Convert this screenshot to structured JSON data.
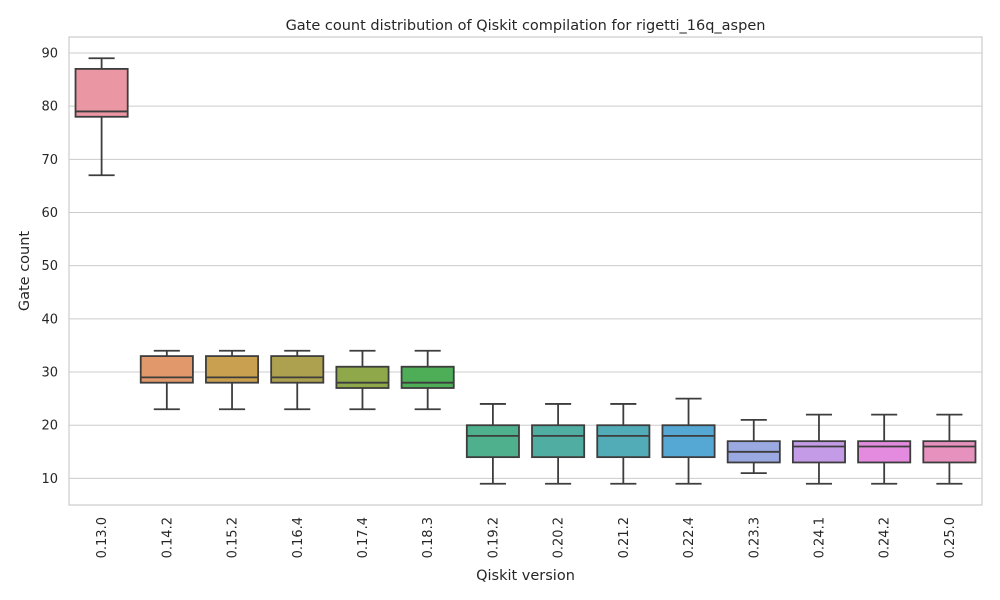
{
  "chart_data": {
    "type": "box",
    "title": "Gate count distribution of Qiskit compilation for rigetti_16q_aspen",
    "xlabel": "Qiskit version",
    "ylabel": "Gate count",
    "ylim": [
      5,
      93
    ],
    "yticks": [
      10,
      20,
      30,
      40,
      50,
      60,
      70,
      80,
      90
    ],
    "grid": "horizontal",
    "categories": [
      "0.13.0",
      "0.14.2",
      "0.15.2",
      "0.16.4",
      "0.17.4",
      "0.18.3",
      "0.19.2",
      "0.20.2",
      "0.21.2",
      "0.22.4",
      "0.23.3",
      "0.24.1",
      "0.24.2",
      "0.25.0"
    ],
    "boxes": [
      {
        "min": 67,
        "q1": 78,
        "median": 79,
        "q3": 87,
        "max": 89,
        "color": "#EA96A3"
      },
      {
        "min": 23,
        "q1": 28,
        "median": 29,
        "q3": 33,
        "max": 34,
        "color": "#E1986A"
      },
      {
        "min": 23,
        "q1": 28,
        "median": 29,
        "q3": 33,
        "max": 34,
        "color": "#C9A04F"
      },
      {
        "min": 23,
        "q1": 28,
        "median": 29,
        "q3": 33,
        "max": 34,
        "color": "#ADA14F"
      },
      {
        "min": 23,
        "q1": 27,
        "median": 28,
        "q3": 31,
        "max": 34,
        "color": "#8FA849"
      },
      {
        "min": 23,
        "q1": 27,
        "median": 28,
        "q3": 31,
        "max": 34,
        "color": "#4DAE57"
      },
      {
        "min": 9,
        "q1": 14,
        "median": 18,
        "q3": 20,
        "max": 24,
        "color": "#4FB08D"
      },
      {
        "min": 9,
        "q1": 14,
        "median": 18,
        "q3": 20,
        "max": 24,
        "color": "#50ADA1"
      },
      {
        "min": 9,
        "q1": 14,
        "median": 18,
        "q3": 20,
        "max": 24,
        "color": "#52ACB7"
      },
      {
        "min": 9,
        "q1": 14,
        "median": 18,
        "q3": 20,
        "max": 25,
        "color": "#55A7D4"
      },
      {
        "min": 11,
        "q1": 13,
        "median": 15,
        "q3": 17,
        "max": 21,
        "color": "#9BA9E3"
      },
      {
        "min": 9,
        "q1": 13,
        "median": 16,
        "q3": 17,
        "max": 22,
        "color": "#C49BE6"
      },
      {
        "min": 9,
        "q1": 13,
        "median": 16,
        "q3": 17,
        "max": 22,
        "color": "#E48BE0"
      },
      {
        "min": 9,
        "q1": 13,
        "median": 16,
        "q3": 17,
        "max": 22,
        "color": "#E791BF"
      }
    ]
  }
}
